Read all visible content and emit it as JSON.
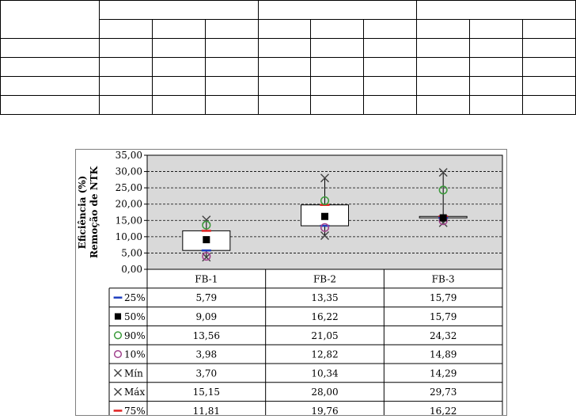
{
  "chart_data": {
    "type": "box",
    "ylabel_lines": [
      "Eficiência (%)",
      "Remoção de NTK"
    ],
    "ylim": [
      0,
      35
    ],
    "y_ticks": [
      "0,00",
      "5,00",
      "10,00",
      "15,00",
      "20,00",
      "25,00",
      "30,00",
      "35,00"
    ],
    "grid": true,
    "plot_background": "#d9d9d9",
    "categories": [
      "FB-1",
      "FB-2",
      "FB-3"
    ],
    "series": [
      {
        "name": "25%",
        "marker": "dash",
        "color": "#1f3fbf",
        "values": [
          5.79,
          13.35,
          15.79
        ],
        "labels": [
          "5,79",
          "13,35",
          "15,79"
        ]
      },
      {
        "name": "50%",
        "marker": "square",
        "color": "#000000",
        "values": [
          9.09,
          16.22,
          15.79
        ],
        "labels": [
          "9,09",
          "16,22",
          "15,79"
        ]
      },
      {
        "name": "90%",
        "marker": "circle",
        "color": "#3a9a3a",
        "values": [
          13.56,
          21.05,
          24.32
        ],
        "labels": [
          "13,56",
          "21,05",
          "24,32"
        ]
      },
      {
        "name": "10%",
        "marker": "circle",
        "color": "#a0408c",
        "values": [
          3.98,
          12.82,
          14.89
        ],
        "labels": [
          "3,98",
          "12,82",
          "14,89"
        ]
      },
      {
        "name": "Mín",
        "marker": "x",
        "color": "#404040",
        "values": [
          3.7,
          10.34,
          14.29
        ],
        "labels": [
          "3,70",
          "10,34",
          "14,29"
        ]
      },
      {
        "name": "Máx",
        "marker": "x",
        "color": "#404040",
        "values": [
          15.15,
          28.0,
          29.73
        ],
        "labels": [
          "15,15",
          "28,00",
          "29,73"
        ]
      },
      {
        "name": "75%",
        "marker": "dash",
        "color": "#e02020",
        "values": [
          11.81,
          19.76,
          16.22
        ],
        "labels": [
          "11,81",
          "19,76",
          "16,22"
        ]
      }
    ]
  },
  "top_table": {
    "header_rows": 2,
    "body_rows": 4,
    "columns": 10
  }
}
